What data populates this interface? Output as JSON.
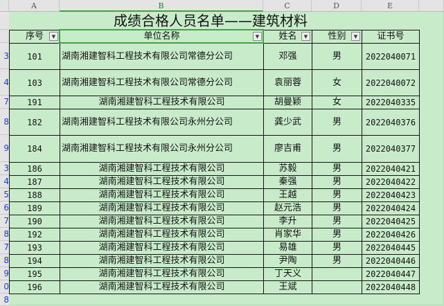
{
  "columns": [
    "A",
    "B",
    "C",
    "D",
    "E"
  ],
  "title": "成绩合格人员名单——建筑材料",
  "headers": {
    "seq": "序号",
    "company": "单位名称",
    "name": "姓名",
    "gender": "性别",
    "cert": "证书号"
  },
  "icons": {
    "filter_dropdown": "dropdown-arrow-icon",
    "filter_active": "filter-active-icon"
  },
  "row_numbers": [
    "3",
    "4",
    "7",
    "8",
    "9",
    "3",
    "4",
    "5",
    "6",
    "7",
    "8",
    "7",
    "8",
    "9",
    "0",
    "8"
  ],
  "rows": [
    {
      "seq": "101",
      "company": "湖南湘建智科工程技术有限公司常德分公司",
      "name": "邓强",
      "gender": "男",
      "cert": "2022040071"
    },
    {
      "seq": "103",
      "company": "湖南湘建智科工程技术有限公司常德分公司",
      "name": "袁丽蓉",
      "gender": "女",
      "cert": "2022040072"
    },
    {
      "seq": "191",
      "company": "湖南湘建智科工程技术有限公司",
      "name": "胡曼颖",
      "gender": "女",
      "cert": "2022040335"
    },
    {
      "seq": "182",
      "company": "湖南湘建智科工程技术有限公司永州分公司",
      "name": "龚少武",
      "gender": "男",
      "cert": "2022040376"
    },
    {
      "seq": "184",
      "company": "湖南湘建智科工程技术有限公司永州分公司",
      "name": "廖吉甫",
      "gender": "男",
      "cert": "2022040377"
    },
    {
      "seq": "186",
      "company": "湖南湘建智科工程技术有限公司",
      "name": "苏毅",
      "gender": "男",
      "cert": "2022040421"
    },
    {
      "seq": "187",
      "company": "湖南湘建智科工程技术有限公司",
      "name": "秦强",
      "gender": "男",
      "cert": "2022040422"
    },
    {
      "seq": "188",
      "company": "湖南湘建智科工程技术有限公司",
      "name": "王越",
      "gender": "男",
      "cert": "2022040423"
    },
    {
      "seq": "189",
      "company": "湖南湘建智科工程技术有限公司",
      "name": "赵元浩",
      "gender": "男",
      "cert": "2022040424"
    },
    {
      "seq": "190",
      "company": "湖南湘建智科工程技术有限公司",
      "name": "李升",
      "gender": "男",
      "cert": "2022040425"
    },
    {
      "seq": "192",
      "company": "湖南湘建智科工程技术有限公司",
      "name": "肖家华",
      "gender": "男",
      "cert": "2022040426"
    },
    {
      "seq": "193",
      "company": "湖南湘建智科工程技术有限公司",
      "name": "易雄",
      "gender": "男",
      "cert": "2022040445"
    },
    {
      "seq": "194",
      "company": "湖南湘建智科工程技术有限公司",
      "name": "尹陶",
      "gender": "男",
      "cert": "2022040446"
    },
    {
      "seq": "195",
      "company": "湖南湘建智科工程技术有限公司",
      "name": "丁天义",
      "gender": "",
      "cert": "2022040447"
    },
    {
      "seq": "196",
      "company": "湖南湘建智科工程技术有限公司",
      "name": "王斌",
      "gender": "",
      "cert": "2022040448"
    }
  ]
}
